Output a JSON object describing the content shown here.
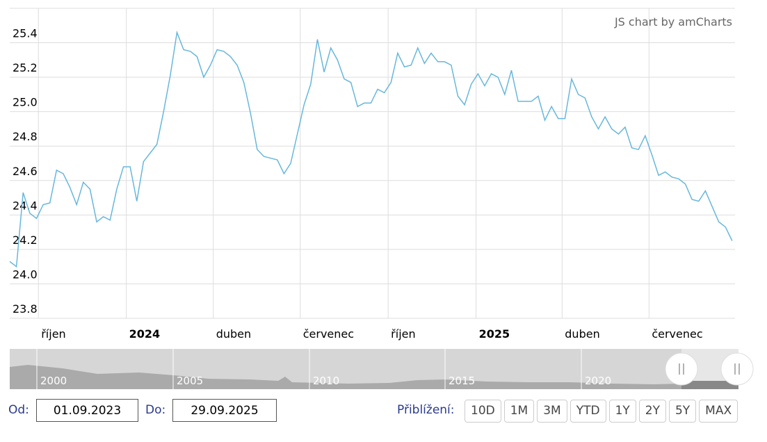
{
  "chart_data": {
    "type": "line",
    "color": "#67b7dc",
    "grid": true,
    "x": [
      "2023-09-01",
      "2023-09-08",
      "2023-09-15",
      "2023-09-22",
      "2023-09-29",
      "2023-10-06",
      "2023-10-13",
      "2023-10-20",
      "2023-10-27",
      "2023-11-03",
      "2023-11-10",
      "2023-11-17",
      "2023-11-24",
      "2023-12-01",
      "2023-12-08",
      "2023-12-15",
      "2023-12-22",
      "2023-12-29",
      "2024-01-05",
      "2024-01-12",
      "2024-01-19",
      "2024-01-26",
      "2024-02-02",
      "2024-02-09",
      "2024-02-16",
      "2024-02-23",
      "2024-03-01",
      "2024-03-08",
      "2024-03-15",
      "2024-03-22",
      "2024-03-29",
      "2024-04-05",
      "2024-04-12",
      "2024-04-19",
      "2024-04-26",
      "2024-05-03",
      "2024-05-10",
      "2024-05-17",
      "2024-05-24",
      "2024-05-31",
      "2024-06-07",
      "2024-06-14",
      "2024-06-21",
      "2024-06-28",
      "2024-07-05",
      "2024-07-12",
      "2024-07-19",
      "2024-07-26",
      "2024-08-02",
      "2024-08-09",
      "2024-08-16",
      "2024-08-23",
      "2024-08-30",
      "2024-09-06",
      "2024-09-13",
      "2024-09-20",
      "2024-09-27",
      "2024-10-04",
      "2024-10-11",
      "2024-10-18",
      "2024-10-25",
      "2024-11-01",
      "2024-11-08",
      "2024-11-15",
      "2024-11-22",
      "2024-11-29",
      "2024-12-06",
      "2024-12-13",
      "2024-12-20",
      "2024-12-27",
      "2025-01-03",
      "2025-01-10",
      "2025-01-17",
      "2025-01-24",
      "2025-01-31",
      "2025-02-07",
      "2025-02-14",
      "2025-02-21",
      "2025-02-28",
      "2025-03-07",
      "2025-03-14",
      "2025-03-21",
      "2025-03-28",
      "2025-04-04",
      "2025-04-11",
      "2025-04-18",
      "2025-04-25",
      "2025-05-02",
      "2025-05-09",
      "2025-05-16",
      "2025-05-23",
      "2025-05-30",
      "2025-06-06",
      "2025-06-13",
      "2025-06-20",
      "2025-06-27",
      "2025-07-04",
      "2025-07-11",
      "2025-07-18",
      "2025-07-25",
      "2025-08-01",
      "2025-08-08",
      "2025-08-15",
      "2025-08-22",
      "2025-08-29",
      "2025-09-05",
      "2025-09-12",
      "2025-09-19",
      "2025-09-26"
    ],
    "values": [
      24.13,
      24.1,
      24.53,
      24.41,
      24.38,
      24.46,
      24.47,
      24.66,
      24.64,
      24.56,
      24.46,
      24.59,
      24.55,
      24.36,
      24.39,
      24.37,
      24.55,
      24.68,
      24.68,
      24.48,
      24.71,
      24.76,
      24.81,
      25.0,
      25.21,
      25.46,
      25.36,
      25.35,
      25.32,
      25.2,
      25.27,
      25.36,
      25.35,
      25.32,
      25.27,
      25.17,
      24.99,
      24.78,
      24.74,
      24.73,
      24.72,
      24.64,
      24.7,
      24.87,
      25.04,
      25.16,
      25.42,
      25.23,
      25.37,
      25.3,
      25.19,
      25.17,
      25.03,
      25.05,
      25.05,
      25.13,
      25.11,
      25.17,
      25.34,
      25.26,
      25.27,
      25.37,
      25.28,
      25.34,
      25.29,
      25.29,
      25.27,
      25.09,
      25.04,
      25.16,
      25.22,
      25.15,
      25.22,
      25.2,
      25.1,
      25.24,
      25.06,
      25.06,
      25.06,
      25.09,
      24.95,
      25.03,
      24.96,
      24.96,
      25.19,
      25.1,
      25.08,
      24.97,
      24.9,
      24.97,
      24.9,
      24.87,
      24.91,
      24.79,
      24.78,
      24.86,
      24.75,
      24.63,
      24.65,
      24.62,
      24.61,
      24.58,
      24.49,
      24.48,
      24.54,
      24.45,
      24.36,
      24.33,
      24.25
    ],
    "xlim": [
      "2023-09-01",
      "2025-09-29"
    ],
    "xticks": [
      {
        "value": "2023-10-01",
        "label": "říjen"
      },
      {
        "value": "2024-01-01",
        "label": "2024"
      },
      {
        "value": "2024-04-01",
        "label": "duben"
      },
      {
        "value": "2024-07-01",
        "label": "červenec"
      },
      {
        "value": "2024-10-01",
        "label": "říjen"
      },
      {
        "value": "2025-01-01",
        "label": "2025"
      },
      {
        "value": "2025-04-01",
        "label": "duben"
      },
      {
        "value": "2025-07-01",
        "label": "červenec"
      }
    ],
    "ylim": [
      23.8,
      25.6
    ],
    "yticks": [
      {
        "value": 23.8,
        "label": "23.8"
      },
      {
        "value": 24,
        "label": "24.0"
      },
      {
        "value": 24.2,
        "label": "24.2"
      },
      {
        "value": 24.4,
        "label": "24.4"
      },
      {
        "value": 24.6,
        "label": "24.6"
      },
      {
        "value": 24.8,
        "label": "24.8"
      },
      {
        "value": 25,
        "label": "25.0"
      },
      {
        "value": 25.2,
        "label": "25.2"
      },
      {
        "value": 25.4,
        "label": "25.4"
      }
    ]
  },
  "credit": "JS chart by amCharts",
  "navigator": {
    "labels": [
      "2000",
      "2005",
      "2010",
      "2015",
      "2020"
    ]
  },
  "controls": {
    "from_label": "Od:",
    "from": "01.09.2023",
    "to_label": "Do:",
    "to": "29.09.2025",
    "zoom_label": "Přiblížení:",
    "zoom_buttons": [
      "10D",
      "1M",
      "3M",
      "YTD",
      "1Y",
      "2Y",
      "5Y",
      "MAX"
    ]
  }
}
